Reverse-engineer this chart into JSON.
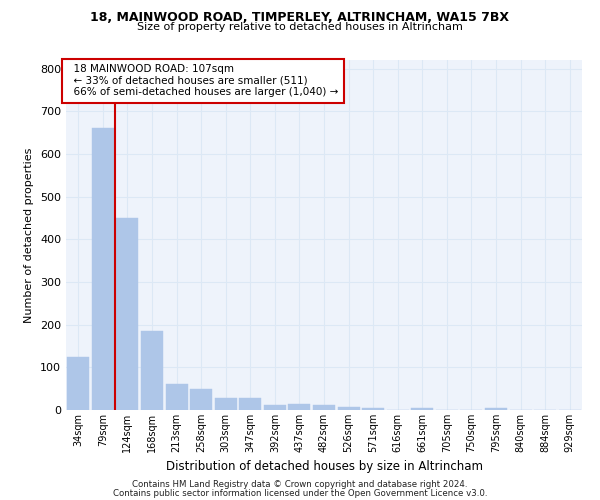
{
  "title1": "18, MAINWOOD ROAD, TIMPERLEY, ALTRINCHAM, WA15 7BX",
  "title2": "Size of property relative to detached houses in Altrincham",
  "xlabel": "Distribution of detached houses by size in Altrincham",
  "ylabel": "Number of detached properties",
  "footer1": "Contains HM Land Registry data © Crown copyright and database right 2024.",
  "footer2": "Contains public sector information licensed under the Open Government Licence v3.0.",
  "annotation_line1": "  18 MAINWOOD ROAD: 107sqm",
  "annotation_line2": "  ← 33% of detached houses are smaller (511)",
  "annotation_line3": "  66% of semi-detached houses are larger (1,040) →",
  "bar_color": "#aec6e8",
  "bar_edge_color": "#aec6e8",
  "vline_color": "#cc0000",
  "grid_color": "#dce8f5",
  "bg_color": "#eef3fb",
  "categories": [
    "34sqm",
    "79sqm",
    "124sqm",
    "168sqm",
    "213sqm",
    "258sqm",
    "303sqm",
    "347sqm",
    "392sqm",
    "437sqm",
    "482sqm",
    "526sqm",
    "571sqm",
    "616sqm",
    "661sqm",
    "705sqm",
    "750sqm",
    "795sqm",
    "840sqm",
    "884sqm",
    "929sqm"
  ],
  "values": [
    125,
    660,
    450,
    185,
    62,
    50,
    27,
    27,
    12,
    15,
    12,
    8,
    5,
    0,
    5,
    0,
    0,
    5,
    0,
    0,
    0
  ],
  "vline_x": 1.5,
  "ylim": [
    0,
    820
  ],
  "yticks": [
    0,
    100,
    200,
    300,
    400,
    500,
    600,
    700,
    800
  ]
}
